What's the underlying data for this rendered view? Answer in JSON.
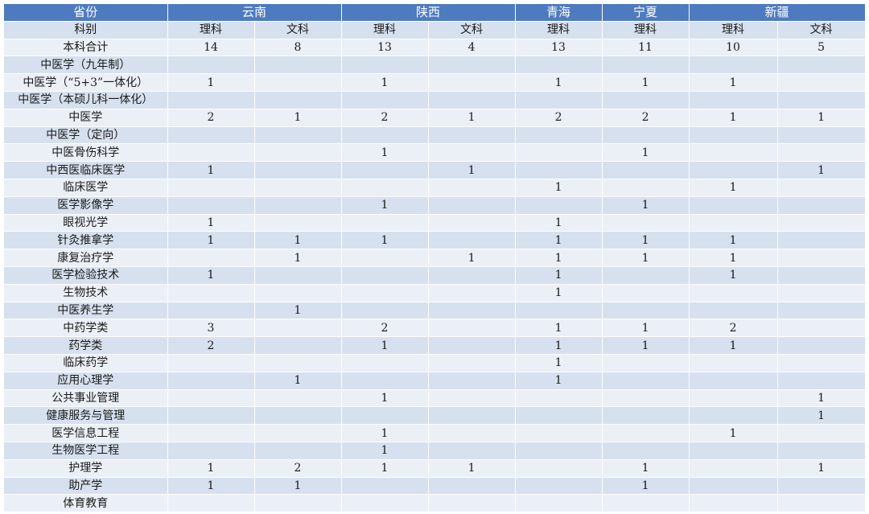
{
  "header": {
    "province_label": "省份",
    "provinces": [
      "云南",
      "陕西",
      "青海",
      "宁夏",
      "新疆"
    ]
  },
  "subheader": {
    "label": "科别",
    "cols": [
      "理科",
      "文科",
      "理科",
      "文科",
      "理科",
      "理科",
      "理科",
      "文科"
    ]
  },
  "rows": [
    {
      "name": "本科合计",
      "values": [
        "14",
        "8",
        "13",
        "4",
        "13",
        "11",
        "10",
        "5"
      ]
    },
    {
      "name": "中医学（九年制）",
      "values": [
        "",
        "",
        "",
        "",
        "",
        "",
        "",
        ""
      ]
    },
    {
      "name": "中医学（“5+3”一体化）",
      "values": [
        "1",
        "",
        "1",
        "",
        "1",
        "1",
        "1",
        ""
      ]
    },
    {
      "name": "中医学（本硕儿科一体化）",
      "values": [
        "",
        "",
        "",
        "",
        "",
        "",
        "",
        ""
      ]
    },
    {
      "name": "中医学",
      "values": [
        "2",
        "1",
        "2",
        "1",
        "2",
        "2",
        "1",
        "1"
      ]
    },
    {
      "name": "中医学（定向）",
      "values": [
        "",
        "",
        "",
        "",
        "",
        "",
        "",
        ""
      ]
    },
    {
      "name": "中医骨伤科学",
      "values": [
        "",
        "",
        "1",
        "",
        "",
        "1",
        "",
        ""
      ]
    },
    {
      "name": "中西医临床医学",
      "values": [
        "1",
        "",
        "",
        "1",
        "",
        "",
        "",
        "1"
      ]
    },
    {
      "name": "临床医学",
      "values": [
        "",
        "",
        "",
        "",
        "1",
        "",
        "1",
        ""
      ]
    },
    {
      "name": "医学影像学",
      "values": [
        "",
        "",
        "1",
        "",
        "",
        "1",
        "",
        ""
      ]
    },
    {
      "name": "眼视光学",
      "values": [
        "1",
        "",
        "",
        "",
        "1",
        "",
        "",
        ""
      ]
    },
    {
      "name": "针灸推拿学",
      "values": [
        "1",
        "1",
        "1",
        "",
        "1",
        "1",
        "1",
        ""
      ]
    },
    {
      "name": "康复治疗学",
      "values": [
        "",
        "1",
        "",
        "1",
        "1",
        "1",
        "1",
        ""
      ]
    },
    {
      "name": "医学检验技术",
      "values": [
        "1",
        "",
        "",
        "",
        "1",
        "",
        "1",
        ""
      ]
    },
    {
      "name": "生物技术",
      "values": [
        "",
        "",
        "",
        "",
        "1",
        "",
        "",
        ""
      ]
    },
    {
      "name": "中医养生学",
      "values": [
        "",
        "1",
        "",
        "",
        "",
        "",
        "",
        ""
      ]
    },
    {
      "name": "中药学类",
      "values": [
        "3",
        "",
        "2",
        "",
        "1",
        "1",
        "2",
        ""
      ]
    },
    {
      "name": "药学类",
      "values": [
        "2",
        "",
        "1",
        "",
        "1",
        "1",
        "1",
        ""
      ]
    },
    {
      "name": "临床药学",
      "values": [
        "",
        "",
        "",
        "",
        "1",
        "",
        "",
        ""
      ]
    },
    {
      "name": "应用心理学",
      "values": [
        "",
        "1",
        "",
        "",
        "1",
        "",
        "",
        ""
      ]
    },
    {
      "name": "公共事业管理",
      "values": [
        "",
        "",
        "1",
        "",
        "",
        "",
        "",
        "1"
      ]
    },
    {
      "name": "健康服务与管理",
      "values": [
        "",
        "",
        "",
        "",
        "",
        "",
        "",
        "1"
      ]
    },
    {
      "name": "医学信息工程",
      "values": [
        "",
        "",
        "1",
        "",
        "",
        "",
        "1",
        ""
      ]
    },
    {
      "name": "生物医学工程",
      "values": [
        "",
        "",
        "1",
        "",
        "",
        "",
        "",
        ""
      ]
    },
    {
      "name": "护理学",
      "values": [
        "1",
        "2",
        "1",
        "1",
        "",
        "1",
        "",
        "1"
      ]
    },
    {
      "name": "助产学",
      "values": [
        "1",
        "1",
        "",
        "",
        "",
        "1",
        "",
        ""
      ]
    },
    {
      "name": "体育教育",
      "values": [
        "",
        "",
        "",
        "",
        "",
        "",
        "",
        ""
      ]
    }
  ]
}
